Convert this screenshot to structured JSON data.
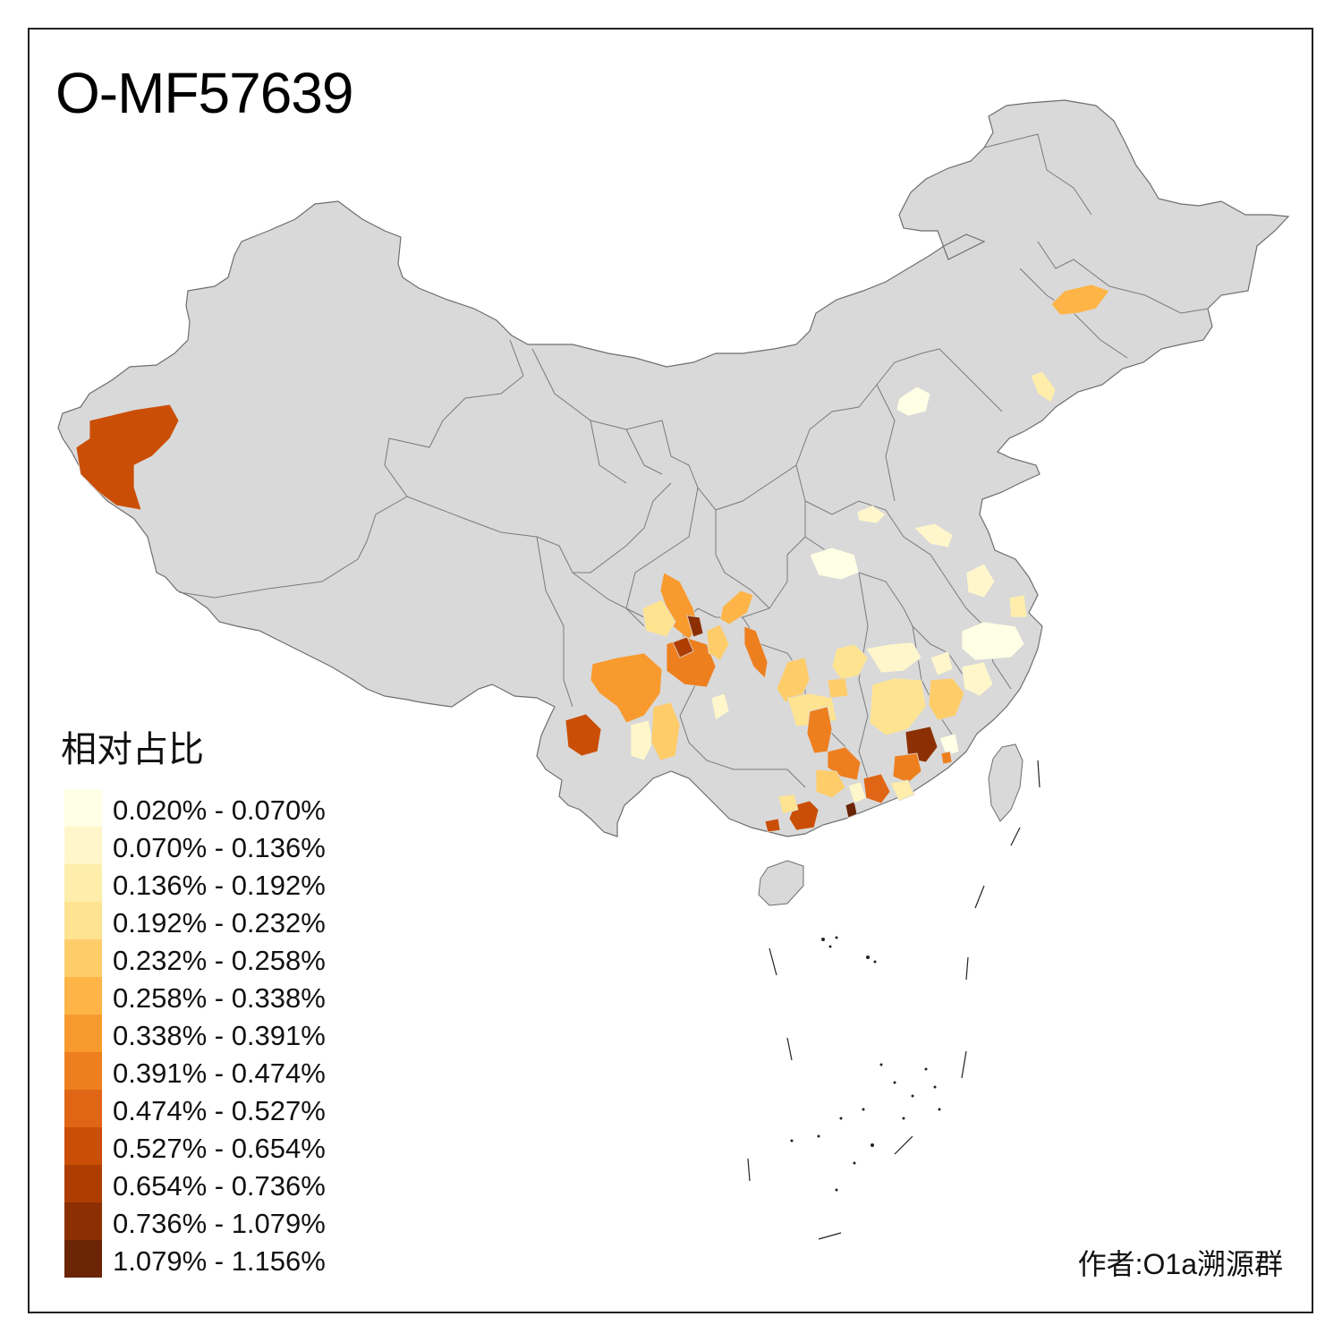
{
  "title": "O-MF57639",
  "legend": {
    "title": "相对占比",
    "bins": [
      {
        "label": "0.020% - 0.070%",
        "color": "#FFFFE5"
      },
      {
        "label": "0.070% - 0.136%",
        "color": "#FFF7CB"
      },
      {
        "label": "0.136% - 0.192%",
        "color": "#FEEDAB"
      },
      {
        "label": "0.192% - 0.232%",
        "color": "#FEE391"
      },
      {
        "label": "0.232% - 0.258%",
        "color": "#FECD6A"
      },
      {
        "label": "0.258% - 0.338%",
        "color": "#FEB446"
      },
      {
        "label": "0.338% - 0.391%",
        "color": "#F99A2E"
      },
      {
        "label": "0.391% - 0.474%",
        "color": "#EE7F1F"
      },
      {
        "label": "0.474% - 0.527%",
        "color": "#E06514"
      },
      {
        "label": "0.527% - 0.654%",
        "color": "#CB4E06"
      },
      {
        "label": "0.654% - 0.736%",
        "color": "#AE3D03"
      },
      {
        "label": "0.736% - 1.079%",
        "color": "#8C3004"
      },
      {
        "label": "1.079% - 1.156%",
        "color": "#6B2406"
      }
    ]
  },
  "author": "作者:O1a溯源群",
  "colors": {
    "land": "#D9D9D9",
    "border": "#6E6E6E",
    "no_data": "#D9D9D9"
  }
}
